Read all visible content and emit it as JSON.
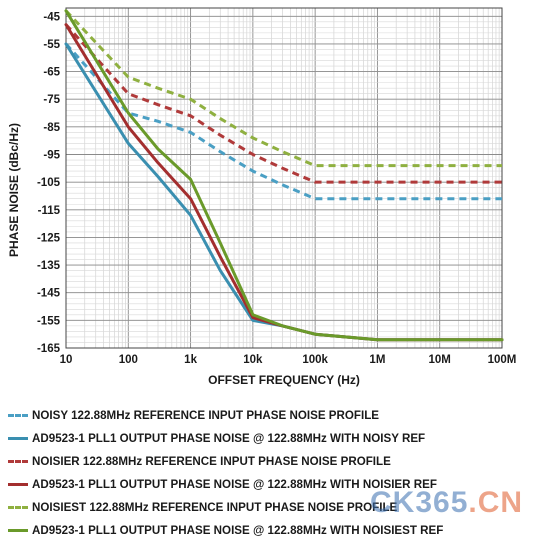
{
  "chart_data": {
    "type": "line",
    "xlabel": "OFFSET FREQUENCY (Hz)",
    "ylabel": "PHASE NOISE (dBc/Hz)",
    "x_scale": "log",
    "xlim": [
      10,
      100000000
    ],
    "ylim": [
      -165,
      -42
    ],
    "y_ticks": [
      -45,
      -55,
      -65,
      -75,
      -85,
      -95,
      -105,
      -115,
      -125,
      -135,
      -145,
      -155,
      -165
    ],
    "x_ticks": [
      "10",
      "100",
      "1k",
      "10k",
      "100k",
      "1M",
      "10M",
      "100M"
    ],
    "x_tick_values": [
      10,
      100,
      1000,
      10000,
      100000,
      1000000,
      10000000,
      100000000
    ],
    "grid": true,
    "legend_position": "bottom",
    "series": [
      {
        "name": "NOISY 122.88MHz REFERENCE INPUT PHASE NOISE PROFILE",
        "color": "#4a9fc4",
        "dashed": true,
        "x": [
          10,
          100,
          300,
          1000,
          3000,
          10000,
          30000,
          100000,
          100000000
        ],
        "y": [
          -55,
          -80,
          -83,
          -87,
          -94,
          -101,
          -106,
          -111,
          -111
        ]
      },
      {
        "name": "AD9523-1 PLL1 OUTPUT PHASE NOISE @ 122.88MHz WITH NOISY REF",
        "color": "#3a8fb0",
        "dashed": false,
        "x": [
          10,
          100,
          300,
          1000,
          3000,
          10000,
          30000,
          100000,
          1000000,
          100000000
        ],
        "y": [
          -55,
          -91,
          -103,
          -117,
          -137,
          -155,
          -157,
          -160,
          -162,
          -162
        ]
      },
      {
        "name": "NOISIER 122.88MHz REFERENCE INPUT PHASE NOISE PROFILE",
        "color": "#b03a3a",
        "dashed": true,
        "x": [
          10,
          100,
          300,
          1000,
          3000,
          10000,
          30000,
          100000,
          100000000
        ],
        "y": [
          -48,
          -73,
          -77,
          -81,
          -88,
          -95,
          -100,
          -105,
          -105
        ]
      },
      {
        "name": "AD9523-1 PLL1 OUTPUT PHASE NOISE @ 122.88MHz WITH NOISIER REF",
        "color": "#a32e2e",
        "dashed": false,
        "x": [
          10,
          100,
          300,
          1000,
          3000,
          10000,
          30000,
          100000,
          1000000,
          100000000
        ],
        "y": [
          -48,
          -85,
          -98,
          -111,
          -132,
          -154,
          -157,
          -160,
          -162,
          -162
        ]
      },
      {
        "name": "NOISIEST 122.88MHz REFERENCE INPUT PHASE NOISE PROFILE",
        "color": "#8fb040",
        "dashed": true,
        "x": [
          10,
          100,
          300,
          1000,
          3000,
          10000,
          30000,
          100000,
          100000000
        ],
        "y": [
          -43,
          -67,
          -71,
          -75,
          -82,
          -89,
          -94,
          -99,
          -99
        ]
      },
      {
        "name": "AD9523-1 PLL1 OUTPUT PHASE NOISE @ 122.88MHz WITH NOISIEST REF",
        "color": "#6a9a2a",
        "dashed": false,
        "x": [
          10,
          100,
          300,
          1000,
          3000,
          10000,
          30000,
          100000,
          1000000,
          100000000
        ],
        "y": [
          -43,
          -80,
          -93,
          -104,
          -127,
          -153,
          -157,
          -160,
          -162,
          -162
        ]
      }
    ]
  },
  "watermark": {
    "main": "CK365",
    "suffix": ".CN"
  }
}
